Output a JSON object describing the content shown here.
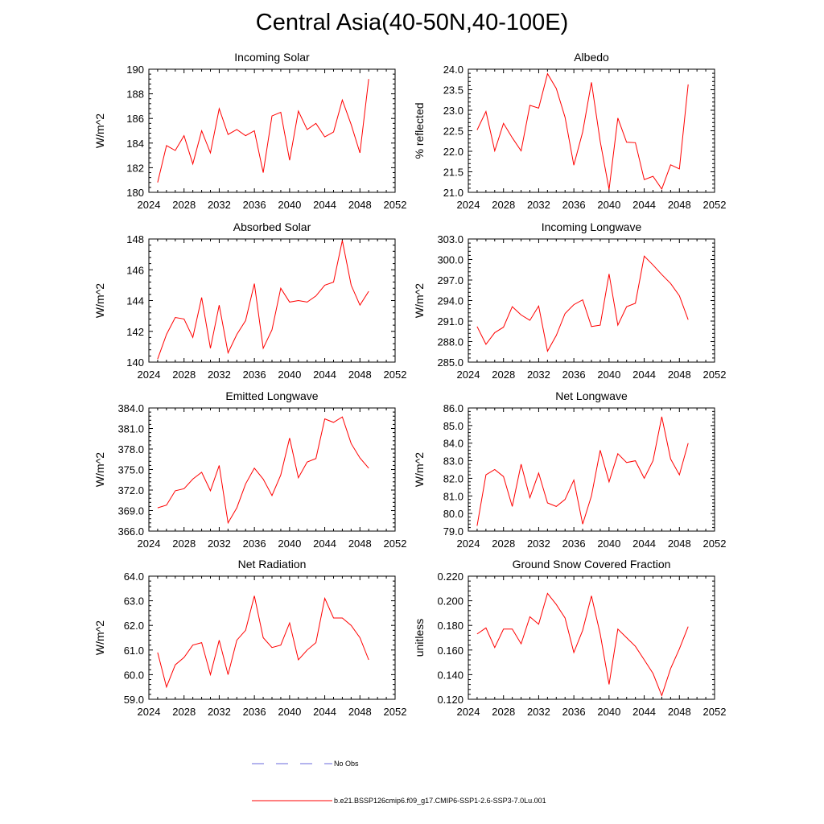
{
  "figure": {
    "title": "Central Asia(40-50N,40-100E)"
  },
  "legend": {
    "items": [
      {
        "label": "No Obs",
        "color": "#6a6adc",
        "dash": true
      },
      {
        "label": "b.e21.BSSP126cmip6.f09_g17.CMIP6-SSP1-2.6-SSP3-7.0Lu.001",
        "color": "#ff0000",
        "dash": false
      }
    ]
  },
  "chart_data": [
    {
      "type": "line",
      "title": "Incoming Solar",
      "ylabel": "W/m^2",
      "xlim": [
        2024,
        2052
      ],
      "xticks": [
        "2024",
        "2028",
        "2032",
        "2036",
        "2040",
        "2044",
        "2048",
        "2052"
      ],
      "ylim": [
        180,
        190
      ],
      "yticks": [
        "180",
        "182",
        "184",
        "186",
        "188",
        "190"
      ],
      "color": "#ff0000",
      "x": [
        2025,
        2026,
        2027,
        2028,
        2029,
        2030,
        2031,
        2032,
        2033,
        2034,
        2035,
        2036,
        2037,
        2038,
        2039,
        2040,
        2041,
        2042,
        2043,
        2044,
        2045,
        2046,
        2047,
        2048,
        2049
      ],
      "values": [
        180.8,
        183.8,
        183.4,
        184.6,
        182.3,
        185.0,
        183.2,
        186.8,
        184.7,
        185.1,
        184.6,
        185.0,
        181.6,
        186.2,
        186.5,
        182.6,
        186.6,
        185.1,
        185.6,
        184.5,
        184.9,
        187.5,
        185.5,
        183.2,
        189.2
      ]
    },
    {
      "type": "line",
      "title": "Albedo",
      "ylabel": "% reflected",
      "xlim": [
        2024,
        2052
      ],
      "xticks": [
        "2024",
        "2028",
        "2032",
        "2036",
        "2040",
        "2044",
        "2048",
        "2052"
      ],
      "ylim": [
        21.0,
        24.0
      ],
      "yticks": [
        "21.0",
        "21.5",
        "22.0",
        "22.5",
        "23.0",
        "23.5",
        "24.0"
      ],
      "color": "#ff0000",
      "x": [
        2025,
        2026,
        2027,
        2028,
        2029,
        2030,
        2031,
        2032,
        2033,
        2034,
        2035,
        2036,
        2037,
        2038,
        2039,
        2040,
        2041,
        2042,
        2043,
        2044,
        2045,
        2046,
        2047,
        2048,
        2049
      ],
      "values": [
        22.52,
        22.97,
        22.01,
        22.68,
        22.33,
        22.01,
        23.12,
        23.05,
        23.89,
        23.53,
        22.83,
        21.66,
        22.47,
        23.68,
        22.24,
        21.07,
        22.81,
        22.22,
        22.21,
        21.31,
        21.39,
        21.08,
        21.67,
        21.57,
        23.63
      ]
    },
    {
      "type": "line",
      "title": "Absorbed Solar",
      "ylabel": "W/m^2",
      "xlim": [
        2024,
        2052
      ],
      "xticks": [
        "2024",
        "2028",
        "2032",
        "2036",
        "2040",
        "2044",
        "2048",
        "2052"
      ],
      "ylim": [
        140,
        148
      ],
      "yticks": [
        "140",
        "142",
        "144",
        "146",
        "148"
      ],
      "color": "#ff0000",
      "x": [
        2025,
        2026,
        2027,
        2028,
        2029,
        2030,
        2031,
        2032,
        2033,
        2034,
        2035,
        2036,
        2037,
        2038,
        2039,
        2040,
        2041,
        2042,
        2043,
        2044,
        2045,
        2046,
        2047,
        2048,
        2049
      ],
      "values": [
        140.2,
        141.8,
        142.9,
        142.8,
        141.6,
        144.2,
        140.9,
        143.7,
        140.6,
        141.8,
        142.7,
        145.1,
        140.9,
        142.1,
        144.8,
        143.9,
        144.0,
        143.9,
        144.3,
        145.0,
        145.2,
        147.9,
        145.0,
        143.7,
        144.6
      ]
    },
    {
      "type": "line",
      "title": "Incoming Longwave",
      "ylabel": "W/m^2",
      "xlim": [
        2024,
        2052
      ],
      "xticks": [
        "2024",
        "2028",
        "2032",
        "2036",
        "2040",
        "2044",
        "2048",
        "2052"
      ],
      "ylim": [
        285.0,
        303.0
      ],
      "yticks": [
        "285.0",
        "288.0",
        "291.0",
        "294.0",
        "297.0",
        "300.0",
        "303.0"
      ],
      "color": "#ff0000",
      "x": [
        2025,
        2026,
        2027,
        2028,
        2029,
        2030,
        2031,
        2032,
        2033,
        2034,
        2035,
        2036,
        2037,
        2038,
        2039,
        2040,
        2041,
        2042,
        2043,
        2044,
        2045,
        2046,
        2047,
        2048,
        2049
      ],
      "values": [
        290.2,
        287.6,
        289.3,
        290.1,
        293.1,
        291.9,
        291.1,
        293.2,
        286.6,
        288.9,
        292.1,
        293.4,
        294.1,
        290.2,
        290.4,
        297.9,
        290.4,
        293.1,
        293.6,
        300.5,
        299.2,
        297.8,
        296.5,
        294.7,
        291.2
      ]
    },
    {
      "type": "line",
      "title": "Emitted Longwave",
      "ylabel": "W/m^2",
      "xlim": [
        2024,
        2052
      ],
      "xticks": [
        "2024",
        "2028",
        "2032",
        "2036",
        "2040",
        "2044",
        "2048",
        "2052"
      ],
      "ylim": [
        366.0,
        384.0
      ],
      "yticks": [
        "366.0",
        "369.0",
        "372.0",
        "375.0",
        "378.0",
        "381.0",
        "384.0"
      ],
      "color": "#ff0000",
      "x": [
        2025,
        2026,
        2027,
        2028,
        2029,
        2030,
        2031,
        2032,
        2033,
        2034,
        2035,
        2036,
        2037,
        2038,
        2039,
        2040,
        2041,
        2042,
        2043,
        2044,
        2045,
        2046,
        2047,
        2048,
        2049
      ],
      "values": [
        369.4,
        369.8,
        371.9,
        372.2,
        373.6,
        374.6,
        371.9,
        375.6,
        367.2,
        369.4,
        372.9,
        375.2,
        373.6,
        371.2,
        374.2,
        379.6,
        373.8,
        376.1,
        376.6,
        382.4,
        381.9,
        382.7,
        378.8,
        376.7,
        375.2
      ]
    },
    {
      "type": "line",
      "title": "Net Longwave",
      "ylabel": "W/m^2",
      "xlim": [
        2024,
        2052
      ],
      "xticks": [
        "2024",
        "2028",
        "2032",
        "2036",
        "2040",
        "2044",
        "2048",
        "2052"
      ],
      "ylim": [
        79.0,
        86.0
      ],
      "yticks": [
        "79.0",
        "80.0",
        "81.0",
        "82.0",
        "83.0",
        "84.0",
        "85.0",
        "86.0"
      ],
      "color": "#ff0000",
      "x": [
        2025,
        2026,
        2027,
        2028,
        2029,
        2030,
        2031,
        2032,
        2033,
        2034,
        2035,
        2036,
        2037,
        2038,
        2039,
        2040,
        2041,
        2042,
        2043,
        2044,
        2045,
        2046,
        2047,
        2048,
        2049
      ],
      "values": [
        79.3,
        82.2,
        82.5,
        82.1,
        80.4,
        82.8,
        80.9,
        82.3,
        80.6,
        80.4,
        80.8,
        81.9,
        79.4,
        81.0,
        83.6,
        81.8,
        83.4,
        82.9,
        83.0,
        82.0,
        83.0,
        85.5,
        83.1,
        82.2,
        84.0
      ]
    },
    {
      "type": "line",
      "title": "Net Radiation",
      "ylabel": "W/m^2",
      "xlim": [
        2024,
        2052
      ],
      "xticks": [
        "2024",
        "2028",
        "2032",
        "2036",
        "2040",
        "2044",
        "2048",
        "2052"
      ],
      "ylim": [
        59.0,
        64.0
      ],
      "yticks": [
        "59.0",
        "60.0",
        "61.0",
        "62.0",
        "63.0",
        "64.0"
      ],
      "color": "#ff0000",
      "x": [
        2025,
        2026,
        2027,
        2028,
        2029,
        2030,
        2031,
        2032,
        2033,
        2034,
        2035,
        2036,
        2037,
        2038,
        2039,
        2040,
        2041,
        2042,
        2043,
        2044,
        2045,
        2046,
        2047,
        2048,
        2049
      ],
      "values": [
        60.9,
        59.5,
        60.4,
        60.7,
        61.2,
        61.3,
        60.0,
        61.4,
        60.0,
        61.4,
        61.8,
        63.2,
        61.5,
        61.1,
        61.2,
        62.1,
        60.6,
        61.0,
        61.3,
        63.1,
        62.3,
        62.3,
        62.0,
        61.5,
        60.6
      ]
    },
    {
      "type": "line",
      "title": "Ground Snow Covered Fraction",
      "ylabel": "unitless",
      "xlim": [
        2024,
        2052
      ],
      "xticks": [
        "2024",
        "2028",
        "2032",
        "2036",
        "2040",
        "2044",
        "2048",
        "2052"
      ],
      "ylim": [
        0.12,
        0.22
      ],
      "yticks": [
        "0.120",
        "0.140",
        "0.160",
        "0.180",
        "0.200",
        "0.220"
      ],
      "color": "#ff0000",
      "x": [
        2025,
        2026,
        2027,
        2028,
        2029,
        2030,
        2031,
        2032,
        2033,
        2034,
        2035,
        2036,
        2037,
        2038,
        2039,
        2040,
        2041,
        2042,
        2043,
        2044,
        2045,
        2046,
        2047,
        2048,
        2049
      ],
      "values": [
        0.173,
        0.178,
        0.162,
        0.177,
        0.177,
        0.165,
        0.187,
        0.181,
        0.206,
        0.197,
        0.186,
        0.158,
        0.176,
        0.204,
        0.173,
        0.132,
        0.177,
        0.17,
        0.163,
        0.152,
        0.141,
        0.123,
        0.145,
        0.161,
        0.179
      ]
    }
  ]
}
